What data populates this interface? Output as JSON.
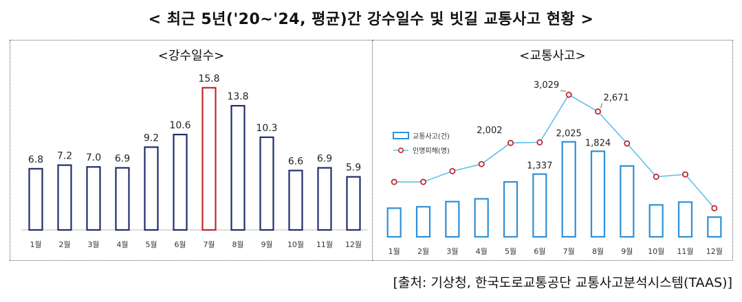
{
  "title": "< 최근 5년('20~'24, 평균)간 강수일수 및 빗길 교통사고 현황 >",
  "source": "[출처: 기상청, 한국도로교통공단 교통사고분석시스템(TAAS)]",
  "colors": {
    "navy": "#1f2d6b",
    "highlight": "#c0272d",
    "blue_bar": "#2e8fd6",
    "line": "#5bc2ea",
    "marker": "#c0272d"
  },
  "chart_data": [
    {
      "type": "bar",
      "title": "<강수일수>",
      "categories": [
        "1월",
        "2월",
        "3월",
        "4월",
        "5월",
        "6월",
        "7월",
        "8월",
        "9월",
        "10월",
        "11월",
        "12월"
      ],
      "values": [
        6.8,
        7.2,
        7.0,
        6.9,
        9.2,
        10.6,
        15.8,
        13.8,
        10.3,
        6.6,
        6.9,
        5.9
      ],
      "data_labels": [
        "6.8",
        "7.2",
        "7.0",
        "6.9",
        "9.2",
        "10.6",
        "15.8",
        "13.8",
        "10.3",
        "6.6",
        "6.9",
        "5.9"
      ],
      "highlight_category": "7월",
      "ylim": [
        0,
        18
      ]
    },
    {
      "type": "bar",
      "title": "<교통사고>",
      "categories": [
        "1월",
        "2월",
        "3월",
        "4월",
        "5월",
        "6월",
        "7월",
        "8월",
        "9월",
        "10월",
        "11월",
        "12월"
      ],
      "series": [
        {
          "name": "교통사고(건)",
          "kind": "bar",
          "values": [
            610,
            640,
            750,
            810,
            1170,
            1337,
            2025,
            1824,
            1510,
            680,
            740,
            420
          ]
        },
        {
          "name": "인명피해(명)",
          "kind": "line",
          "values": [
            1170,
            1170,
            1400,
            1550,
            2002,
            2014,
            3029,
            2671,
            1990,
            1280,
            1330,
            610
          ]
        }
      ],
      "bar_labels": [
        {
          "index": 5,
          "text": "1,337"
        },
        {
          "index": 6,
          "text": "2,025"
        },
        {
          "index": 7,
          "text": "1,824"
        }
      ],
      "line_labels": [
        {
          "index": 4,
          "text": "2,002"
        },
        {
          "index": 6,
          "text": "3,029"
        },
        {
          "index": 7,
          "text": "2,671"
        }
      ],
      "legend_position": "left",
      "ylim": [
        0,
        3600
      ]
    }
  ]
}
